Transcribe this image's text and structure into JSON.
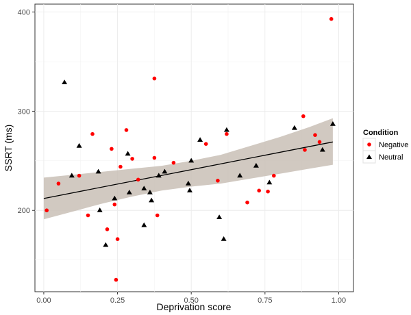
{
  "chart_data": {
    "type": "scatter",
    "xlabel": "Deprivation score",
    "ylabel": "SSRT (ms)",
    "xlim": [
      -0.03,
      1.05
    ],
    "ylim": [
      118,
      408
    ],
    "x_ticks": [
      {
        "value": 0.0,
        "label": "0.00"
      },
      {
        "value": 0.25,
        "label": "0.25"
      },
      {
        "value": 0.5,
        "label": "0.50"
      },
      {
        "value": 0.75,
        "label": "0.75"
      },
      {
        "value": 1.0,
        "label": "1.00"
      }
    ],
    "y_ticks": [
      {
        "value": 200,
        "label": "200"
      },
      {
        "value": 300,
        "label": "300"
      },
      {
        "value": 400,
        "label": "400"
      }
    ],
    "grid": true,
    "legend": {
      "title": "Condition",
      "position": "right"
    },
    "colors": {
      "negative": "#ff0000",
      "neutral": "#000000",
      "band": "#c9c0b6",
      "panel": "#ffffff",
      "grid": "#ebebeb"
    },
    "series": [
      {
        "name": "Negative",
        "marker": "circle",
        "points": [
          [
            0.01,
            200
          ],
          [
            0.05,
            227
          ],
          [
            0.12,
            235
          ],
          [
            0.15,
            195
          ],
          [
            0.165,
            277
          ],
          [
            0.215,
            181
          ],
          [
            0.23,
            262
          ],
          [
            0.24,
            206
          ],
          [
            0.245,
            130
          ],
          [
            0.25,
            171
          ],
          [
            0.26,
            244
          ],
          [
            0.28,
            281
          ],
          [
            0.3,
            252
          ],
          [
            0.32,
            231
          ],
          [
            0.375,
            333
          ],
          [
            0.375,
            253
          ],
          [
            0.385,
            195
          ],
          [
            0.44,
            248
          ],
          [
            0.55,
            267
          ],
          [
            0.62,
            277
          ],
          [
            0.59,
            230
          ],
          [
            0.69,
            208
          ],
          [
            0.73,
            220
          ],
          [
            0.76,
            219
          ],
          [
            0.78,
            235
          ],
          [
            0.88,
            295
          ],
          [
            0.885,
            261
          ],
          [
            0.92,
            276
          ],
          [
            0.935,
            269
          ],
          [
            0.975,
            393
          ]
        ]
      },
      {
        "name": "Neutral",
        "marker": "triangle",
        "points": [
          [
            0.07,
            329
          ],
          [
            0.095,
            235
          ],
          [
            0.12,
            265
          ],
          [
            0.185,
            239
          ],
          [
            0.19,
            200
          ],
          [
            0.21,
            165
          ],
          [
            0.24,
            212
          ],
          [
            0.285,
            257
          ],
          [
            0.29,
            218
          ],
          [
            0.34,
            185
          ],
          [
            0.34,
            222
          ],
          [
            0.36,
            218
          ],
          [
            0.365,
            210
          ],
          [
            0.39,
            235
          ],
          [
            0.41,
            239
          ],
          [
            0.49,
            227
          ],
          [
            0.495,
            220
          ],
          [
            0.5,
            250
          ],
          [
            0.53,
            271
          ],
          [
            0.62,
            281
          ],
          [
            0.595,
            193
          ],
          [
            0.61,
            171
          ],
          [
            0.665,
            235
          ],
          [
            0.72,
            245
          ],
          [
            0.765,
            228
          ],
          [
            0.85,
            283
          ],
          [
            0.945,
            261
          ],
          [
            0.98,
            287
          ]
        ]
      }
    ],
    "fit_line": {
      "x": [
        0.0,
        0.98
      ],
      "y": [
        212,
        269
      ]
    },
    "confidence_band": {
      "x": [
        0.0,
        0.1,
        0.2,
        0.3,
        0.4,
        0.5,
        0.6,
        0.7,
        0.8,
        0.9,
        0.98
      ],
      "upper": [
        233,
        236,
        239,
        242,
        245,
        250,
        256,
        265,
        274,
        284,
        293
      ],
      "lower": [
        191,
        199,
        207,
        214,
        220,
        224,
        227,
        232,
        237,
        242,
        246
      ]
    }
  }
}
